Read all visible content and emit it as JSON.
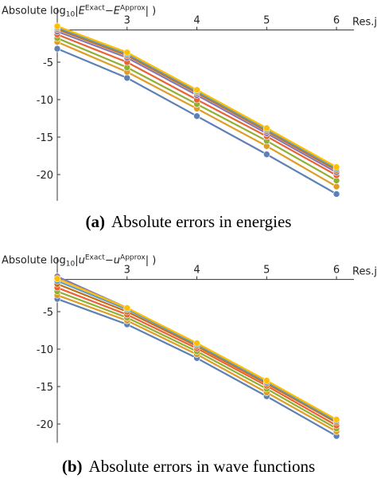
{
  "chart_data": [
    {
      "type": "line",
      "caption_label": "(a)",
      "caption": "Absolute errors in energies",
      "y_label": [
        {
          "t": "Absolute log"
        },
        {
          "t": "10",
          "s": "sub"
        },
        {
          "t": "|"
        },
        {
          "t": "E",
          "s": "it"
        },
        {
          "t": "Exact",
          "s": "sup"
        },
        {
          "t": "−"
        },
        {
          "t": "E",
          "s": "it"
        },
        {
          "t": "Approx",
          "s": "sup"
        },
        {
          "t": "| )"
        }
      ],
      "x_label": "Res.j",
      "x": [
        2,
        3,
        4,
        5,
        6
      ],
      "xlim": [
        2,
        6.25
      ],
      "xticks": [
        3,
        4,
        5,
        6
      ],
      "ylim": [
        -23.5,
        -0.7
      ],
      "yticks": [
        -5,
        -10,
        -15,
        -20
      ],
      "series": [
        {
          "color": "#5e81b5",
          "values": [
            -3.2,
            -7.1,
            -12.2,
            -17.3,
            -22.6
          ]
        },
        {
          "color": "#e19c24",
          "values": [
            -2.3,
            -6.3,
            -11.2,
            -16.2,
            -21.6
          ]
        },
        {
          "color": "#8fb032",
          "values": [
            -1.8,
            -5.7,
            -10.6,
            -15.5,
            -20.8
          ]
        },
        {
          "color": "#eb6235",
          "values": [
            -1.3,
            -5.0,
            -10.0,
            -14.9,
            -20.1
          ]
        },
        {
          "color": "#8778b3",
          "values": [
            -0.9,
            -4.4,
            -9.4,
            -14.5,
            -19.7
          ]
        },
        {
          "color": "#c56e1a",
          "values": [
            -0.6,
            -4.1,
            -9.1,
            -14.2,
            -19.4
          ]
        },
        {
          "color": "#5d9ec7",
          "values": [
            -0.4,
            -3.9,
            -8.9,
            -14.0,
            -19.2
          ]
        },
        {
          "color": "#ffbf00",
          "values": [
            -0.2,
            -3.7,
            -8.7,
            -13.8,
            -19.0
          ]
        }
      ]
    },
    {
      "type": "line",
      "caption_label": "(b)",
      "caption": "Absolute errors in wave functions",
      "y_label": [
        {
          "t": "Absolute log"
        },
        {
          "t": "10",
          "s": "sub"
        },
        {
          "t": "|"
        },
        {
          "t": "u",
          "s": "it"
        },
        {
          "t": "Exact",
          "s": "sup"
        },
        {
          "t": "−"
        },
        {
          "t": "u",
          "s": "it"
        },
        {
          "t": "Approx",
          "s": "sup"
        },
        {
          "t": "| )"
        }
      ],
      "x_label": "Res.j",
      "x": [
        2,
        3,
        4,
        5,
        6
      ],
      "xlim": [
        2,
        6.25
      ],
      "xticks": [
        3,
        4,
        5,
        6
      ],
      "ylim": [
        -22.5,
        -0.7
      ],
      "yticks": [
        -5,
        -10,
        -15,
        -20
      ],
      "series": [
        {
          "color": "#5e81b5",
          "values": [
            -3.3,
            -6.7,
            -11.2,
            -16.3,
            -21.6
          ]
        },
        {
          "color": "#e19c24",
          "values": [
            -2.8,
            -6.2,
            -10.7,
            -15.8,
            -21.0
          ]
        },
        {
          "color": "#8fb032",
          "values": [
            -2.3,
            -5.8,
            -10.3,
            -15.3,
            -20.6
          ]
        },
        {
          "color": "#eb6235",
          "values": [
            -1.8,
            -5.4,
            -9.9,
            -14.9,
            -20.2
          ]
        },
        {
          "color": "#8778b3",
          "values": [
            -0.3,
            -4.5,
            -9.3,
            -14.3,
            -19.5
          ]
        },
        {
          "color": "#c56e1a",
          "values": [
            -1.3,
            -5.0,
            -9.6,
            -14.6,
            -19.8
          ]
        },
        {
          "color": "#5d9ec7",
          "values": [
            -0.9,
            -4.7,
            -9.4,
            -14.4,
            -19.6
          ]
        },
        {
          "color": "#ffbf00",
          "values": [
            -0.6,
            -4.5,
            -9.2,
            -14.2,
            -19.4
          ]
        }
      ]
    }
  ]
}
